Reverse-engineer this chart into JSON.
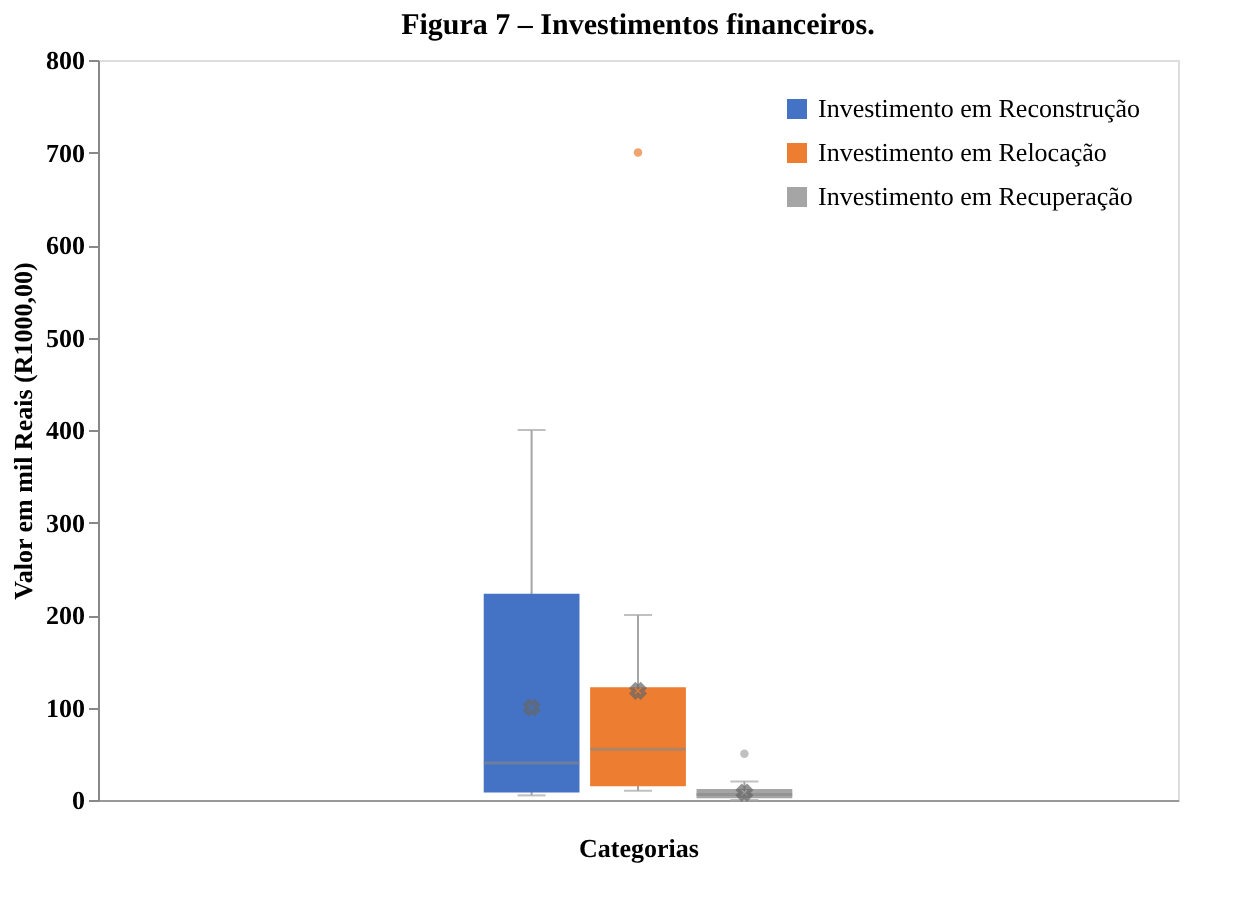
{
  "chart_data": {
    "type": "box",
    "title": "Figura 7 – Investimentos financeiros.",
    "xlabel": "Categorias",
    "ylabel": "Valor em mil Reais (R1000,00)",
    "categories": [
      null
    ],
    "series": [
      {
        "name": "Investimento em Reconstrução",
        "color": "#4472c4",
        "boxes": [
          {
            "low": 5,
            "q1": 8,
            "median": 40,
            "q3": 223,
            "high": 400,
            "mean": 100
          }
        ]
      },
      {
        "name": "Investimento em Relocação",
        "color": "#ed7d31",
        "boxes": [
          {
            "low": 10,
            "q1": 15,
            "median": 55,
            "q3": 122,
            "high": 200,
            "mean": 118,
            "outliers": [
              700
            ]
          }
        ]
      },
      {
        "name": "Investimento em Recuperação",
        "color": "#a5a5a5",
        "boxes": [
          {
            "low": 0,
            "q1": 2,
            "median": 6,
            "q3": 12,
            "high": 20,
            "mean": 8,
            "outliers": [
              50
            ]
          }
        ]
      }
    ],
    "ylim": [
      0,
      800
    ],
    "yticks": [
      0,
      100,
      200,
      300,
      400,
      500,
      600,
      700,
      800
    ],
    "grid": false,
    "legend": "top right"
  }
}
